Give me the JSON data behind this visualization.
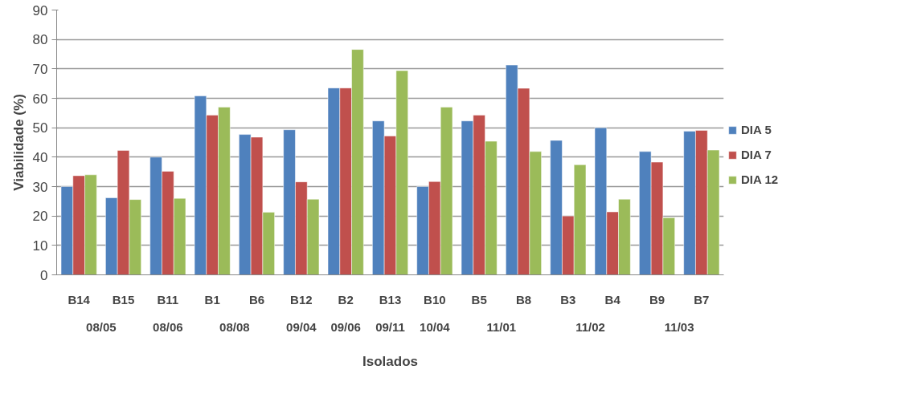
{
  "chart_data": {
    "type": "bar",
    "xlabel": "Isolados",
    "ylabel": "Viabilidade (%)",
    "categories": [
      "B14",
      "B15",
      "B11",
      "B1",
      "B6",
      "B12",
      "B2",
      "B13",
      "B10",
      "B5",
      "B8",
      "B3",
      "B4",
      "B9",
      "B7"
    ],
    "series": [
      {
        "name": "DIA 5",
        "color": "#4f81bd",
        "values": [
          30,
          26.2,
          40,
          60.8,
          47.7,
          49.3,
          63.5,
          52.3,
          30,
          52.3,
          71.3,
          45.7,
          50,
          41.9,
          48.8
        ]
      },
      {
        "name": "DIA 7",
        "color": "#c0504d",
        "values": [
          33.7,
          42.3,
          35.2,
          54.3,
          46.8,
          31.6,
          63.5,
          47.2,
          31.7,
          54.3,
          63.4,
          20,
          21.4,
          38.3,
          49.1
        ]
      },
      {
        "name": "DIA 12",
        "color": "#9bbb59",
        "values": [
          34,
          25.6,
          26,
          57,
          21.3,
          25.7,
          76.6,
          69.4,
          57,
          45.4,
          41.9,
          37.4,
          25.7,
          19.4,
          42.4
        ]
      }
    ],
    "annotations": [
      "08/05",
      "08/06",
      "08/08",
      "09/04",
      "09/06",
      "09/11",
      "10/04",
      "11/01",
      "11/02",
      "11/03"
    ],
    "ylim": [
      0,
      90
    ],
    "yticks": [
      0,
      10,
      20,
      30,
      40,
      50,
      60,
      70,
      80,
      90
    ],
    "grid": "y",
    "legend": "right"
  }
}
